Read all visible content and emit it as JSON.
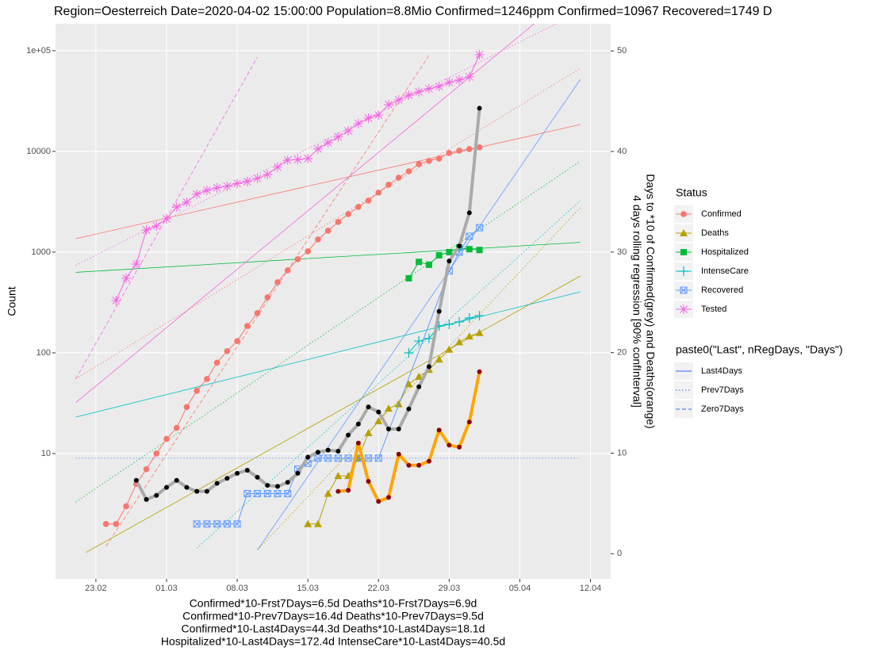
{
  "chart_data": {
    "type": "line",
    "title": "Region=Oesterreich Date=2020-04-02 15:00:00  Population=8.8Mio Confirmed=1246ppm  Confirmed=10967  Recovered=1749 D",
    "y_label": "Count",
    "y2_label": [
      "Days to *10 of Confirmed(grey) and Deaths(orange)",
      "4 days rolling regression [90% confInterval]"
    ],
    "caption": [
      "Confirmed*10-Frst7Days=6.5d  Deaths*10-Frst7Days=6.9d",
      "Confirmed*10-Prev7Days=16.4d  Deaths*10-Prev7Days=9.5d",
      "Confirmed*10-Last4Days=44.3d  Deaths*10-Last4Days=18.1d",
      "Hospitalized*10-Last4Days=172.4d  IntenseCare*10-Last4Days=40.5d"
    ],
    "xlim": [
      "19.02",
      "14.04"
    ],
    "xticks": [
      "23.02",
      "01.03",
      "08.03",
      "15.03",
      "22.03",
      "29.03",
      "05.04",
      "12.04"
    ],
    "ylog": true,
    "ylim": [
      0.57,
      185000
    ],
    "yticks": [
      10,
      100,
      1000,
      10000,
      {
        "value": 100000,
        "label": "1e+05"
      }
    ],
    "y2lim": [
      -2.5,
      52.7
    ],
    "y2ticks": [
      0,
      10,
      20,
      30,
      40,
      50
    ],
    "grid": true,
    "legend_title": "Status",
    "linetype_title": "paste0(\"Last\", nRegDays, \"Days\")",
    "linetype_color": "#3366ff",
    "linetypes": [
      {
        "name": "Last4Days",
        "dash": "solid"
      },
      {
        "name": "Prev7Days",
        "dash": "dotted"
      },
      {
        "name": "Zero7Days",
        "dash": "dashed"
      }
    ],
    "series": [
      {
        "name": "Confirmed",
        "color": "#F8766D",
        "shape": "circle",
        "x": [
          "24.02",
          "25.02",
          "26.02",
          "27.02",
          "28.02",
          "29.02",
          "01.03",
          "02.03",
          "03.03",
          "04.03",
          "05.03",
          "06.03",
          "07.03",
          "08.03",
          "09.03",
          "10.03",
          "11.03",
          "12.03",
          "13.03",
          "14.03",
          "15.03",
          "16.03",
          "17.03",
          "18.03",
          "19.03",
          "20.03",
          "21.03",
          "22.03",
          "23.03",
          "24.03",
          "25.03",
          "26.03",
          "27.03",
          "28.03",
          "29.03",
          "30.03",
          "31.03",
          "01.04"
        ],
        "values": [
          2,
          2,
          3,
          5,
          7,
          10,
          14,
          18,
          29,
          42,
          55,
          80,
          104,
          131,
          185,
          248,
          356,
          502,
          659,
          850,
          1018,
          1337,
          1632,
          1992,
          2388,
          2812,
          3251,
          3900,
          4670,
          5490,
          6350,
          7480,
          8050,
          8500,
          9640,
          10190,
          10570,
          10967
        ]
      },
      {
        "name": "Deaths",
        "color": "#B79F00",
        "shape": "triangle",
        "x": [
          "15.03",
          "16.03",
          "17.03",
          "18.03",
          "19.03",
          "20.03",
          "21.03",
          "22.03",
          "23.03",
          "24.03",
          "25.03",
          "26.03",
          "27.03",
          "28.03",
          "29.03",
          "30.03",
          "31.03",
          "01.04"
        ],
        "values": [
          2,
          2,
          4,
          6,
          6,
          9,
          16,
          21,
          28,
          31,
          49,
          58,
          68,
          86,
          108,
          128,
          146,
          158
        ]
      },
      {
        "name": "Hospitalized",
        "color": "#00BA38",
        "shape": "square",
        "x": [
          "25.03",
          "26.03",
          "27.03",
          "28.03",
          "29.03",
          "30.03",
          "31.03",
          "01.04"
        ],
        "values": [
          550,
          800,
          750,
          930,
          1000,
          1110,
          1070,
          1050
        ]
      },
      {
        "name": "IntenseCare",
        "color": "#00BFC4",
        "shape": "plus",
        "x": [
          "25.03",
          "26.03",
          "27.03",
          "28.03",
          "29.03",
          "30.03",
          "31.03",
          "01.04"
        ],
        "values": [
          100,
          131,
          139,
          185,
          192,
          203,
          222,
          234
        ]
      },
      {
        "name": "Recovered",
        "color": "#619CFF",
        "shape": "square-x",
        "x": [
          "04.03",
          "05.03",
          "06.03",
          "07.03",
          "08.03",
          "09.03",
          "10.03",
          "11.03",
          "12.03",
          "13.03",
          "14.03",
          "15.03",
          "16.03",
          "17.03",
          "18.03",
          "19.03",
          "20.03",
          "21.03",
          "22.03",
          "29.03",
          "30.03",
          "31.03",
          "01.04"
        ],
        "values": [
          2,
          2,
          2,
          2,
          2,
          4,
          4,
          4,
          4,
          4,
          7,
          8,
          9,
          9,
          9,
          9,
          9,
          9,
          9,
          650,
          1000,
          1436,
          1749
        ]
      },
      {
        "name": "Tested",
        "color": "#F564E3",
        "shape": "asterisk",
        "x": [
          "25.02",
          "26.02",
          "27.02",
          "28.02",
          "29.02",
          "01.03",
          "02.03",
          "03.03",
          "04.03",
          "05.03",
          "06.03",
          "07.03",
          "08.03",
          "09.03",
          "10.03",
          "11.03",
          "12.03",
          "13.03",
          "14.03",
          "15.03",
          "16.03",
          "17.03",
          "18.03",
          "19.03",
          "20.03",
          "21.03",
          "22.03",
          "23.03",
          "24.03",
          "25.03",
          "26.03",
          "27.03",
          "28.03",
          "29.03",
          "30.03",
          "31.03",
          "01.04"
        ],
        "values": [
          331,
          550,
          762,
          1660,
          1820,
          2140,
          2800,
          3130,
          3760,
          4110,
          4350,
          4510,
          4800,
          5020,
          5400,
          5910,
          7000,
          8190,
          8300,
          8500,
          10570,
          12200,
          13900,
          16000,
          18900,
          21400,
          23000,
          29100,
          32500,
          36200,
          39000,
          41900,
          44200,
          48500,
          51200,
          55000,
          91400
        ]
      },
      {
        "axis": "y2",
        "color": "#aaaaaa",
        "point_color": "#000000",
        "x": [
          "27.02",
          "28.02",
          "29.02",
          "01.03",
          "02.03",
          "03.03",
          "04.03",
          "05.03",
          "06.03",
          "07.03",
          "08.03",
          "09.03",
          "10.03",
          "11.03",
          "12.03",
          "13.03",
          "14.03",
          "15.03",
          "16.03",
          "17.03",
          "18.03",
          "19.03",
          "20.03",
          "21.03",
          "22.03",
          "23.03",
          "24.03",
          "25.03",
          "26.03",
          "27.03",
          "28.03",
          "29.03",
          "30.03",
          "31.03",
          "01.04"
        ],
        "values": [
          7.3,
          5.4,
          5.8,
          6.6,
          7.3,
          6.6,
          6.2,
          6.2,
          7.0,
          7.5,
          8.0,
          8.3,
          7.6,
          6.8,
          6.7,
          7.1,
          8.0,
          9.6,
          10.1,
          10.3,
          10.2,
          11.8,
          12.9,
          14.6,
          14.1,
          12.4,
          12.4,
          14.4,
          16.6,
          18.6,
          24.1,
          29.1,
          30.6,
          33.9,
          44.3
        ]
      },
      {
        "axis": "y2",
        "color": "#FFA500",
        "point_color": "#8B0000",
        "x": [
          "18.03",
          "19.03",
          "20.03",
          "21.03",
          "22.03",
          "23.03",
          "24.03",
          "25.03",
          "26.03",
          "27.03",
          "28.03",
          "29.03",
          "30.03",
          "31.03",
          "01.04"
        ],
        "values": [
          6.2,
          6.3,
          11.0,
          7.2,
          5.2,
          5.6,
          9.9,
          8.8,
          8.8,
          9.2,
          12.3,
          10.8,
          10.6,
          13.1,
          18.1
        ]
      }
    ],
    "fits": [
      {
        "color": "#F8766D",
        "dash": "solid",
        "x": [
          "21.02",
          "11.04"
        ],
        "values": [
          1360,
          18500
        ]
      },
      {
        "color": "#B79F00",
        "dash": "solid",
        "x": [
          "22.02",
          "11.04"
        ],
        "values": [
          1.04,
          580
        ]
      },
      {
        "color": "#00BA38",
        "dash": "solid",
        "x": [
          "21.02",
          "11.04"
        ],
        "values": [
          630,
          1250
        ]
      },
      {
        "color": "#00BFC4",
        "dash": "solid",
        "x": [
          "21.02",
          "11.04"
        ],
        "values": [
          23,
          404
        ]
      },
      {
        "color": "#619CFF",
        "dash": "solid",
        "x": [
          "10.03",
          "11.04"
        ],
        "values": [
          1.1,
          52000
        ]
      },
      {
        "color": "#F564E3",
        "dash": "solid",
        "x": [
          "21.02",
          "11.04"
        ],
        "values": [
          32,
          443000
        ]
      },
      {
        "color": "#F8766D",
        "dash": "dotted",
        "x": [
          "21.02",
          "11.04"
        ],
        "values": [
          55,
          67000
        ]
      },
      {
        "color": "#00BA38",
        "dash": "dotted",
        "x": [
          "21.02",
          "11.04"
        ],
        "values": [
          3.3,
          8000
        ]
      },
      {
        "color": "#00BFC4",
        "dash": "dotted",
        "x": [
          "04.03",
          "11.04"
        ],
        "values": [
          1.15,
          3250
        ]
      },
      {
        "color": "#B79F00",
        "dash": "dotted",
        "x": [
          "10.03",
          "11.04"
        ],
        "values": [
          1.1,
          2770
        ]
      },
      {
        "color": "#F564E3",
        "dash": "dotted",
        "x": [
          "21.02",
          "11.04"
        ],
        "values": [
          740,
          245000
        ]
      },
      {
        "color": "#619CFF",
        "dash": "dotted",
        "x": [
          "21.02",
          "11.04"
        ],
        "values": [
          9,
          9
        ]
      },
      {
        "color": "#F8766D",
        "dash": "dashed",
        "x": [
          "24.02",
          "27.03"
        ],
        "values": [
          1.2,
          89700
        ]
      },
      {
        "color": "#F564E3",
        "dash": "dashed",
        "x": [
          "21.02",
          "10.03"
        ],
        "values": [
          55,
          86500
        ]
      }
    ]
  }
}
